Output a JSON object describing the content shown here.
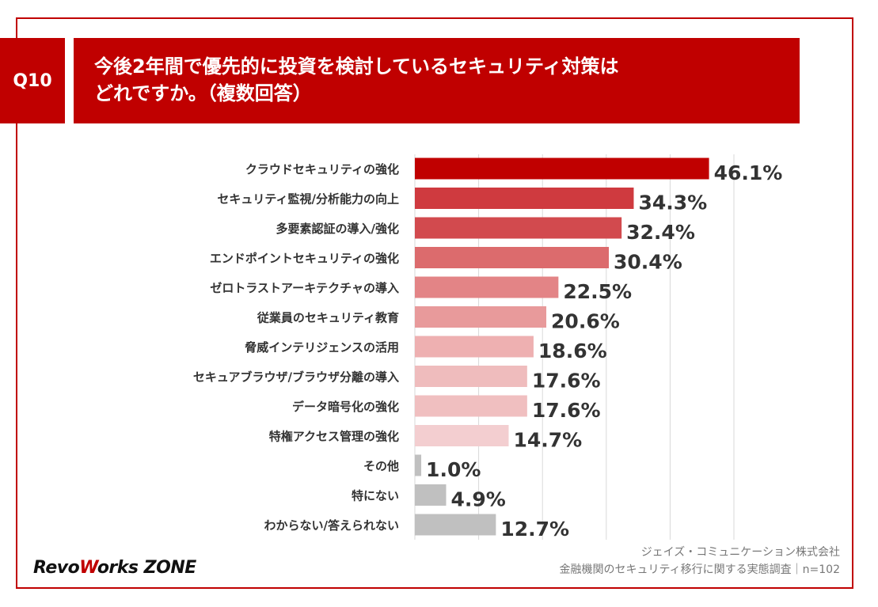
{
  "question": {
    "number": "Q10",
    "title_line1": "今後2年間で優先的に投資を検討しているセキュリティ対策は",
    "title_line2": "どれですか。（複数回答）"
  },
  "chart_data": {
    "type": "bar",
    "orientation": "horizontal",
    "categories": [
      "クラウドセキュリティの強化",
      "セキュリティ監視/分析能力の向上",
      "多要素認証の導入/強化",
      "エンドポイントセキュリティの強化",
      "ゼロトラストアーキテクチャの導入",
      "従業員のセキュリティ教育",
      "脅威インテリジェンスの活用",
      "セキュアブラウザ/ブラウザ分離の導入",
      "データ暗号化の強化",
      "特権アクセス管理の強化",
      "その他",
      "特にない",
      "わからない/答えられない"
    ],
    "values": [
      46.1,
      34.3,
      32.4,
      30.4,
      22.5,
      20.6,
      18.6,
      17.6,
      17.6,
      14.7,
      1.0,
      4.9,
      12.7
    ],
    "value_labels": [
      "46.1%",
      "34.3%",
      "32.4%",
      "30.4%",
      "22.5%",
      "20.6%",
      "18.6%",
      "17.6%",
      "17.6%",
      "14.7%",
      "1.0%",
      "4.9%",
      "12.7%"
    ],
    "colors": [
      "#c00000",
      "#cf3a3f",
      "#d24a4e",
      "#dc6b6d",
      "#e38486",
      "#e89a9b",
      "#eeb0b1",
      "#efbcbd",
      "#f0bfc0",
      "#f3ced0",
      "#c0c0c0",
      "#c0c0c0",
      "#c0c0c0"
    ],
    "xlim": [
      0,
      50
    ],
    "gridlines": true,
    "legend": "none"
  },
  "source": {
    "line1": "ジェイズ・コミュニケーション株式会社",
    "line2": "金融機関のセキュリティ移行に関する実態調査｜n=102"
  },
  "logo": {
    "part1": "Revo",
    "part2": "W",
    "part3": "orks ZONE"
  }
}
